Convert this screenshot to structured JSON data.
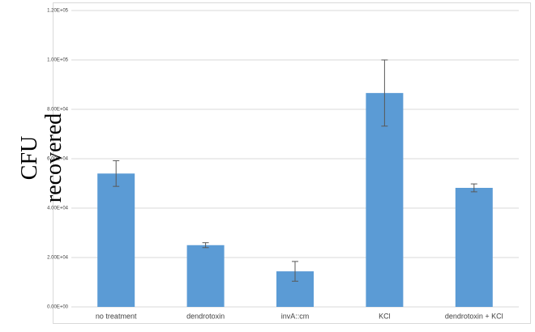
{
  "chart_data": {
    "type": "bar",
    "ylabel": "CFU recovered",
    "categories": [
      "no treatment",
      "dendrotoxin",
      "invA::cm",
      "KCl",
      "dendrotoxin + KCl"
    ],
    "values": [
      54000,
      25000,
      14400,
      86600,
      48200
    ],
    "errors": [
      5200,
      1000,
      4000,
      13400,
      1600
    ],
    "color": "#5b9bd5",
    "ylim": [
      0,
      120000
    ],
    "yticks": [
      {
        "value": 0,
        "label": "0.00E+00"
      },
      {
        "value": 20000,
        "label": "2.00E+04"
      },
      {
        "value": 40000,
        "label": "4.00E+04"
      },
      {
        "value": 60000,
        "label": "6.00E+04"
      },
      {
        "value": 80000,
        "label": "8.00E+04"
      },
      {
        "value": 100000,
        "label": "1.00E+05"
      },
      {
        "value": 120000,
        "label": "1.20E+05"
      }
    ],
    "grid": true
  }
}
